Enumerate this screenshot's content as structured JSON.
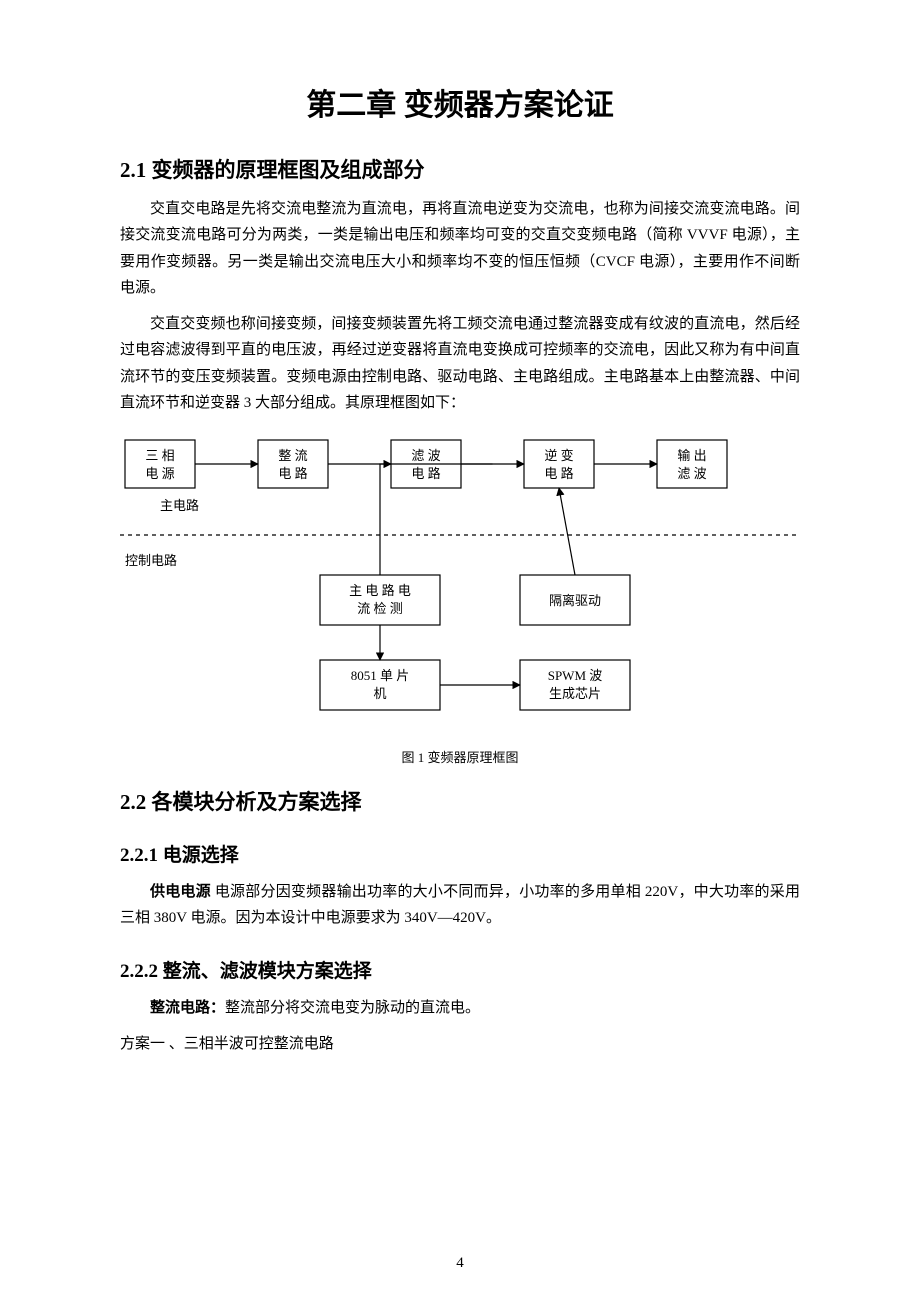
{
  "page": {
    "title": "第二章  变频器方案论证",
    "section_2_1_title": "2.1 变频器的原理框图及组成部分",
    "para1": "交直交电路是先将交流电整流为直流电，再将直流电逆变为交流电，也称为间接交流变流电路。间接交流变流电路可分为两类，一类是输出电压和频率均可变的交直交变频电路（简称 VVVF 电源），主要用作变频器。另一类是输出交流电压大小和频率均不变的恒压恒频（CVCF 电源），主要用作不间断电源。",
    "para2": "交直交变频也称间接变频，间接变频装置先将工频交流电通过整流器变成有纹波的直流电，然后经过电容滤波得到平直的电压波，再经过逆变器将直流电变换成可控频率的交流电，因此又称为有中间直流环节的变压变频装置。变频电源由控制电路、驱动电路、主电路组成。主电路基本上由整流器、中间直流环节和逆变器 3 大部分组成。其原理框图如下：",
    "fig1_caption": "图 1 变频器原理框图",
    "section_2_2_title": "2.2 各模块分析及方案选择",
    "section_2_2_1_title": "2.2.1 电源选择",
    "para3_bold": "供电电源",
    "para3_rest": " 电源部分因变频器输出功率的大小不同而异，小功率的多用单相 220V，中大功率的采用三相 380V 电源。因为本设计中电源要求为 340V—420V。",
    "section_2_2_2_title": "2.2.2 整流、滤波模块方案选择",
    "para4_bold": "整流电路：",
    "para4_rest": "整流部分将交流电变为脉动的直流电。",
    "para5": "方案一 、三相半波可控整流电路",
    "pagenum": "4"
  },
  "diagram": {
    "label_main": "主电路",
    "label_ctrl": "控制电路",
    "nodes": {
      "n1": {
        "line1": "三 相",
        "line2": "电 源"
      },
      "n2": {
        "line1": "整 流",
        "line2": "电 路"
      },
      "n3": {
        "line1": "滤 波",
        "line2": "电 路"
      },
      "n4": {
        "line1": "逆 变",
        "line2": "电 路"
      },
      "n5": {
        "line1": "输 出",
        "line2": "滤 波"
      },
      "n6": {
        "line1": "主 电 路 电",
        "line2": "流 检 测"
      },
      "n7": {
        "line1": "隔离驱动"
      },
      "n8": {
        "line1": "8051 单 片",
        "line2": "机"
      },
      "n9": {
        "line1": "SPWM 波",
        "line2": "生成芯片"
      }
    },
    "style": {
      "box_stroke": "#000000",
      "box_fill": "#ffffff",
      "arrow_stroke": "#000000",
      "dash_stroke": "#000000",
      "text_color": "#000000",
      "box_stroke_width": 1.2,
      "arrow_stroke_width": 1.2
    }
  }
}
